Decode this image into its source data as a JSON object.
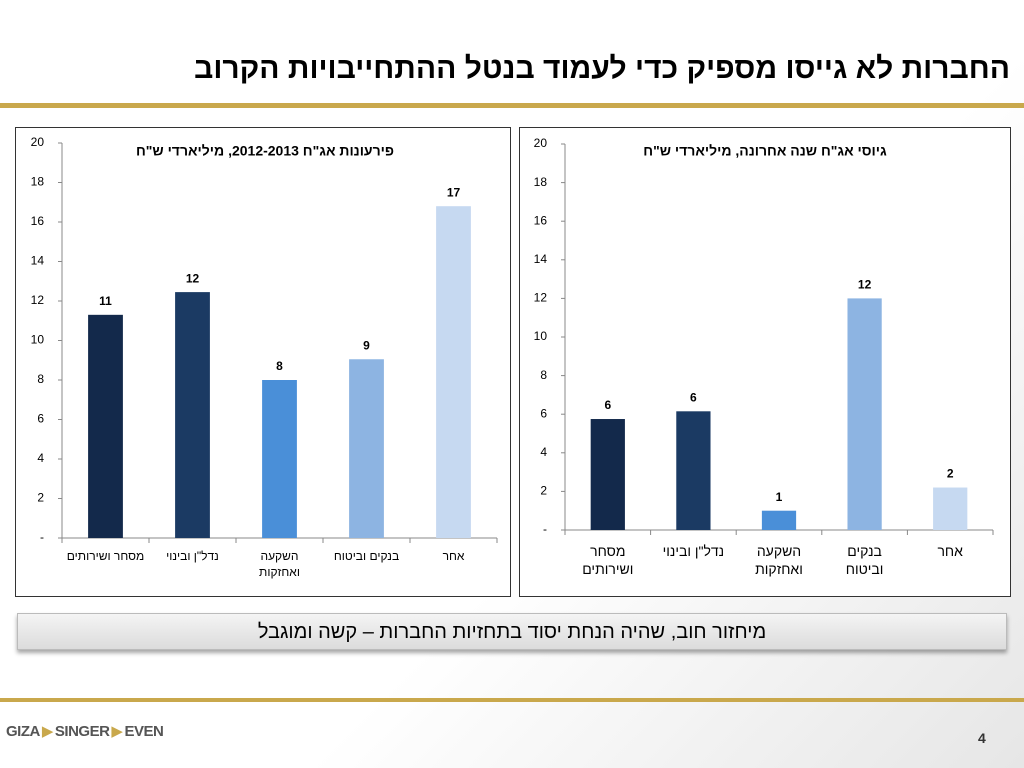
{
  "slide_title": "החברות לא גייסו מספיק כדי לעמוד בנטל ההתחייבויות הקרוב",
  "chart_data": [
    {
      "type": "bar",
      "title": "פירעונות אג\"ח 2012-2013, מיליארדי ש\"ח",
      "categories": [
        "מסחר ושירותים",
        "נדל\"ן ובינוי",
        "השקעה ואחזקות",
        "בנקים וביטוח",
        "אחר"
      ],
      "values": [
        11.3,
        12.45,
        8.0,
        9.05,
        16.8
      ],
      "value_labels": [
        "11",
        "12",
        "8",
        "9",
        "17"
      ],
      "colors": [
        "#13294b",
        "#1b3a63",
        "#4a8fd8",
        "#8db4e2",
        "#c6d9f1"
      ],
      "ylim": [
        0,
        20
      ],
      "yticks": [
        {
          "value": 0,
          "label": "-"
        },
        2,
        4,
        6,
        8,
        10,
        12,
        14,
        16,
        18,
        20
      ]
    },
    {
      "type": "bar",
      "title": "גיוסי אג\"ח שנה אחרונה, מיליארדי ש\"ח",
      "categories": [
        "מסחר ושירותים",
        "נדל\"ן ובינוי",
        "השקעה ואחזקות",
        "בנקים וביטוח",
        "אחר"
      ],
      "values": [
        5.75,
        6.15,
        1.0,
        12.0,
        2.2
      ],
      "value_labels": [
        "6",
        "6",
        "1",
        "12",
        "2"
      ],
      "colors": [
        "#13294b",
        "#1b3a63",
        "#4a8fd8",
        "#8db4e2",
        "#c6d9f1"
      ],
      "ylim": [
        0,
        20
      ],
      "yticks": [
        {
          "value": 0,
          "label": "-"
        },
        2,
        4,
        6,
        8,
        10,
        12,
        14,
        16,
        18,
        20
      ]
    }
  ],
  "summary": "מיחזור חוב, שהיה הנחת יסוד בתחזיות החברות – קשה ומוגבל",
  "logo": [
    "GIZA",
    "SINGER",
    "EVEN"
  ],
  "page_number": "4"
}
